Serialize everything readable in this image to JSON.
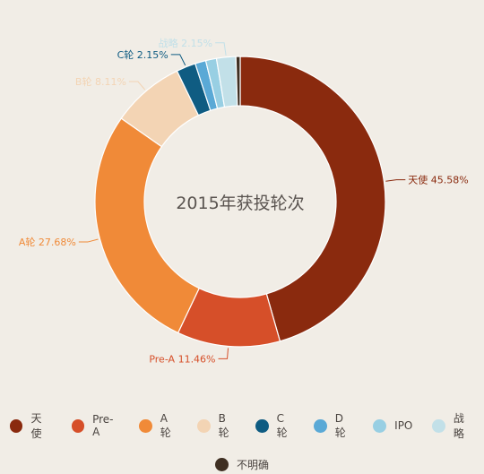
{
  "chart_data": {
    "type": "pie",
    "title": "2015年获投轮次",
    "categories": [
      "天使",
      "Pre-A",
      "A轮",
      "B轮",
      "C轮",
      "D轮",
      "IPO",
      "战略",
      "不明确"
    ],
    "values": [
      45.58,
      11.46,
      27.68,
      8.11,
      2.15,
      1.2,
      1.2,
      2.15,
      0.47
    ],
    "labels": [
      "天使 45.58%",
      "Pre-A 11.46%",
      "A轮 27.68%",
      "B轮 8.11%",
      "C轮 2.15%",
      "",
      "",
      "战略 2.15%",
      ""
    ],
    "colors": [
      "#8a2a0e",
      "#d64f29",
      "#f08a38",
      "#f3d4b4",
      "#0f5c82",
      "#5aa9d6",
      "#98cfe3",
      "#c2e0e8",
      "#3f2f22"
    ],
    "legend_position": "bottom",
    "donut": true
  }
}
